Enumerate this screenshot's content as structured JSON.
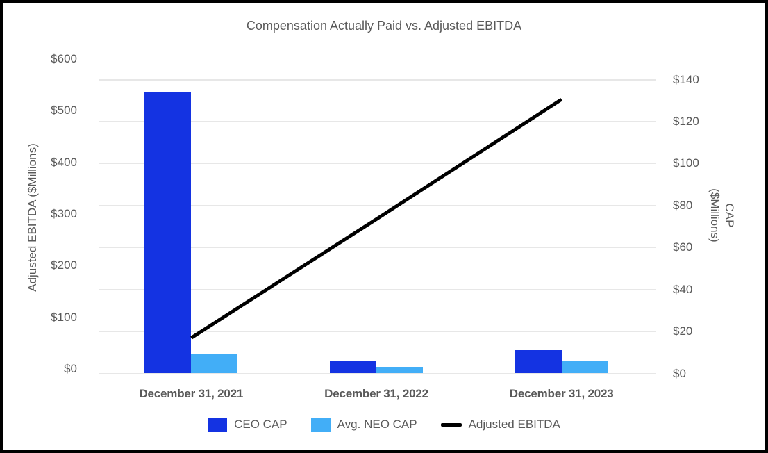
{
  "title": "Compensation Actually Paid vs. Adjusted EBITDA",
  "chart_data": {
    "type": "bar",
    "subtype": "grouped-bar-with-line-overlay-dual-axis",
    "categories": [
      "December 31, 2021",
      "December 31, 2022",
      "December 31, 2023"
    ],
    "series": [
      {
        "name": "CEO CAP",
        "type": "bar",
        "axis": "right",
        "color": "#1433e2",
        "values": [
          134,
          6,
          11
        ]
      },
      {
        "name": "Avg. NEO CAP",
        "type": "bar",
        "axis": "right",
        "color": "#42aef7",
        "values": [
          9,
          3,
          6
        ]
      },
      {
        "name": "Adjusted EBITDA",
        "type": "line",
        "axis": "left",
        "color": "#000000",
        "values": [
          60,
          290,
          522
        ]
      }
    ],
    "left_axis": {
      "title": "Adjusted EBITDA ($Millions)",
      "min": 0,
      "max": 600,
      "step": 100,
      "tick_labels": [
        "$0",
        "$100",
        "$200",
        "$300",
        "$400",
        "$500",
        "$600"
      ]
    },
    "right_axis": {
      "title_line1": "CAP",
      "title_line2": "($Millions)",
      "min": 0,
      "max": 140,
      "step": 20,
      "tick_labels": [
        "$0",
        "$20",
        "$40",
        "$60",
        "$80",
        "$100",
        "$120",
        "$140"
      ]
    },
    "grid": "horizontal gridlines aligned to right-axis ticks",
    "legend_position": "bottom-center",
    "colors": {
      "text": "#595959",
      "gridline": "#e7e7e7",
      "background": "#ffffff",
      "border": "#000000"
    }
  }
}
